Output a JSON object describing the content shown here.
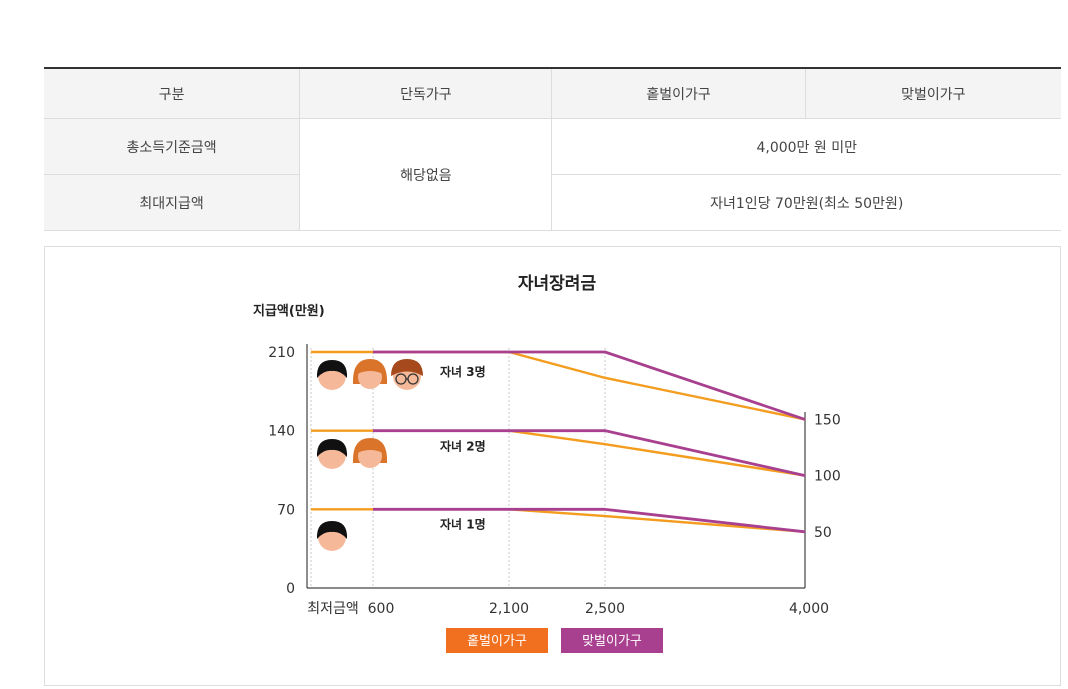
{
  "table": {
    "headers": [
      "구분",
      "단독가구",
      "홑벌이가구",
      "맞벌이가구"
    ],
    "rows": [
      {
        "label": "총소득기준금액",
        "single": "해당없음",
        "value": "4,000만 원 미만"
      },
      {
        "label": "최대지급액",
        "value": "자녀1인당 70만원(최소 50만원)"
      }
    ]
  },
  "chart_data": {
    "type": "line",
    "title": "자녀장려금",
    "ylabel": "지급액(만원)",
    "ylim": [
      0,
      240
    ],
    "y_ticks": [
      0,
      70,
      140,
      210
    ],
    "x_ticks": [
      "최저금액",
      "600",
      "2,100",
      "2,500",
      "4,000"
    ],
    "x": [
      600,
      2100,
      2500,
      4000
    ],
    "right_labels": [
      "150",
      "100",
      "50"
    ],
    "colors": {
      "single_earner": "#f39c1e",
      "dual_earner": "#a8408f"
    },
    "series": [
      {
        "name": "홑벌이가구",
        "group": "자녀 3명",
        "values": [
          210,
          210,
          187,
          150
        ]
      },
      {
        "name": "맞벌이가구",
        "group": "자녀 3명",
        "values": [
          210,
          210,
          210,
          150
        ]
      },
      {
        "name": "홑벌이가구",
        "group": "자녀 2명",
        "values": [
          140,
          140,
          128,
          100
        ]
      },
      {
        "name": "맞벌이가구",
        "group": "자녀 2명",
        "values": [
          140,
          140,
          140,
          100
        ]
      },
      {
        "name": "홑벌이가구",
        "group": "자녀 1명",
        "values": [
          70,
          70,
          64,
          50
        ]
      },
      {
        "name": "맞벌이가구",
        "group": "자녀 1명",
        "values": [
          70,
          70,
          70,
          50
        ]
      }
    ],
    "group_labels": [
      "자녀 3명",
      "자녀 2명",
      "자녀 1명"
    ],
    "legend": [
      {
        "label": "홑벌이가구",
        "color": "#f07020"
      },
      {
        "label": "맞벌이가구",
        "color": "#a8408f"
      }
    ],
    "legend_position": "bottom"
  }
}
